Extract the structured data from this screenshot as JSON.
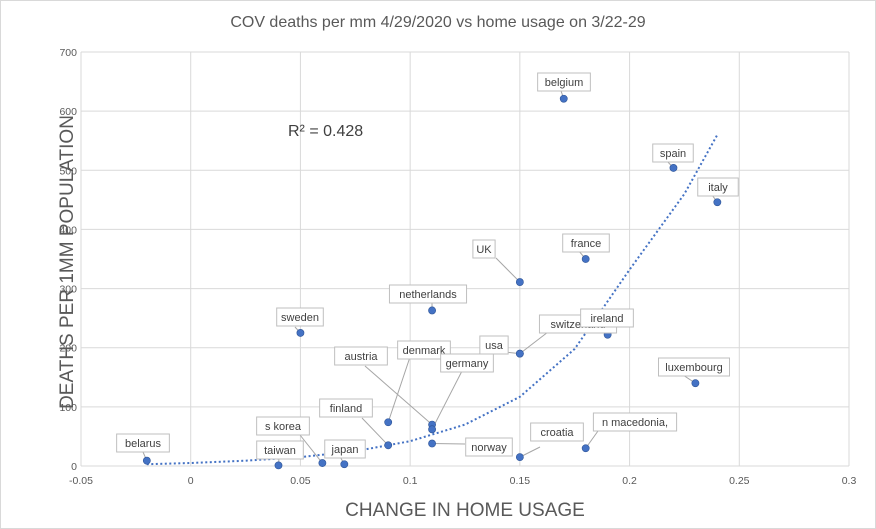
{
  "chart_data": {
    "type": "scatter",
    "title": "COV deaths per mm  4/29/2020 vs home usage on 3/22-29",
    "xlabel": "CHANGE IN HOME USAGE",
    "ylabel": "DEATHS PER 1MM POPULATION",
    "xlim": [
      -0.05,
      0.3
    ],
    "ylim": [
      0,
      700
    ],
    "xticks": [
      -0.05,
      0,
      0.05,
      0.1,
      0.15,
      0.2,
      0.25,
      0.3
    ],
    "xtick_labels": [
      "-0.05",
      "0",
      "0.05",
      "0.1",
      "0.15",
      "0.2",
      "0.25",
      "0.3"
    ],
    "yticks": [
      0,
      100,
      200,
      300,
      400,
      500,
      600,
      700
    ],
    "ytick_labels": [
      "0",
      "100",
      "200",
      "300",
      "400",
      "500",
      "600",
      "700"
    ],
    "grid": true,
    "marker_color": "#4472c4",
    "trendline": {
      "type": "exponential",
      "r_squared_label": "R² = 0.428",
      "points": [
        [
          -0.02,
          3
        ],
        [
          0,
          5
        ],
        [
          0.025,
          9
        ],
        [
          0.05,
          15
        ],
        [
          0.075,
          25
        ],
        [
          0.1,
          42
        ],
        [
          0.125,
          70
        ],
        [
          0.15,
          117
        ],
        [
          0.175,
          198
        ],
        [
          0.2,
          332
        ],
        [
          0.225,
          460
        ],
        [
          0.24,
          560
        ]
      ]
    },
    "points": [
      {
        "name": "belgium",
        "x": 0.17,
        "y": 621
      },
      {
        "name": "spain",
        "x": 0.22,
        "y": 504
      },
      {
        "name": "italy",
        "x": 0.24,
        "y": 446
      },
      {
        "name": "france",
        "x": 0.18,
        "y": 350
      },
      {
        "name": "UK",
        "x": 0.15,
        "y": 311
      },
      {
        "name": "netherlands",
        "x": 0.11,
        "y": 263
      },
      {
        "name": "sweden",
        "x": 0.05,
        "y": 225
      },
      {
        "name": "switzerland",
        "x": 0.15,
        "y": 190
      },
      {
        "name": "ireland",
        "x": 0.19,
        "y": 222
      },
      {
        "name": "usa",
        "x": 0.15,
        "y": 190
      },
      {
        "name": "luxembourg",
        "x": 0.23,
        "y": 140
      },
      {
        "name": "austria",
        "x": 0.11,
        "y": 70
      },
      {
        "name": "denmark",
        "x": 0.09,
        "y": 74
      },
      {
        "name": "germany",
        "x": 0.11,
        "y": 62
      },
      {
        "name": "finland",
        "x": 0.09,
        "y": 35
      },
      {
        "name": "norway",
        "x": 0.11,
        "y": 38
      },
      {
        "name": "croatia",
        "x": 0.15,
        "y": 15
      },
      {
        "name": "n macedonia,",
        "x": 0.18,
        "y": 30
      },
      {
        "name": "s korea",
        "x": 0.06,
        "y": 5
      },
      {
        "name": "japan",
        "x": 0.07,
        "y": 3
      },
      {
        "name": "taiwan",
        "x": 0.04,
        "y": 1
      },
      {
        "name": "belarus",
        "x": -0.02,
        "y": 9
      }
    ]
  }
}
